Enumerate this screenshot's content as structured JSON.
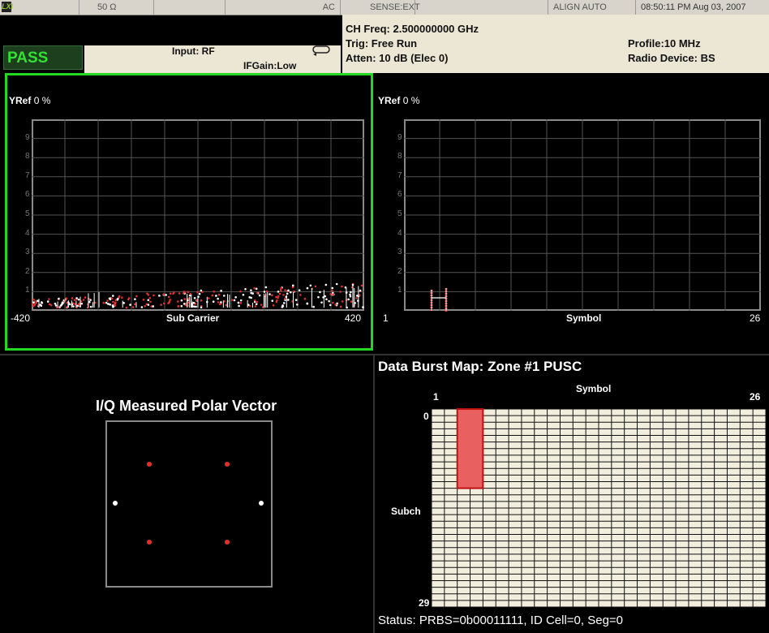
{
  "status_bar": {
    "logo": "LXI",
    "impedance": "50 Ω",
    "coupling": "AC",
    "sense": "SENSE:EXT",
    "align": "ALIGN AUTO",
    "datetime": "08:50:11 PM Aug 03, 2007"
  },
  "measurement_bar": {
    "pass_label": "PASS",
    "input": "Input: RF",
    "ifgain": "IFGain:Low",
    "ch_freq": "CH Freq: 2.500000000 GHz",
    "trig": "Trig: Free Run",
    "atten": "Atten: 10 dB (Elec 0)",
    "profile": "Profile:10 MHz",
    "radio_device": "Radio Device: BS"
  },
  "subcarrier_plot": {
    "yref": "YRef",
    "yref_value": "0 %",
    "xlabel": "Sub Carrier",
    "xmin": "-420",
    "xmax": "420",
    "yticks": [
      "9",
      "8",
      "7",
      "6",
      "5",
      "4",
      "3",
      "2",
      "1"
    ]
  },
  "symbol_plot": {
    "yref": "YRef",
    "yref_value": "0 %",
    "xlabel": "Symbol",
    "xmin": "1",
    "xmax": "26",
    "yticks": [
      "9",
      "8",
      "7",
      "6",
      "5",
      "4",
      "3",
      "2",
      "1"
    ]
  },
  "polar_plot": {
    "title": "I/Q Measured Polar Vector"
  },
  "burst_map": {
    "title": "Data Burst Map: Zone #1 PUSC",
    "xlabel": "Symbol",
    "xmin": "1",
    "xmax": "26",
    "ymin": "0",
    "ymax": "29",
    "ylabel": "Subch",
    "status": "Status: PRBS=0b00011111, ID Cell=0, Seg=0",
    "columns": 26,
    "rows": 30,
    "burst": {
      "col_start": 2,
      "col_end": 3,
      "row_start": 0,
      "row_end": 11
    }
  },
  "colors": {
    "pass_green": "#35e035",
    "active_border": "#22d822",
    "trace_red": "#e03030",
    "grid_gray": "#8a8a8a",
    "map_cell": "#f2eedd"
  }
}
